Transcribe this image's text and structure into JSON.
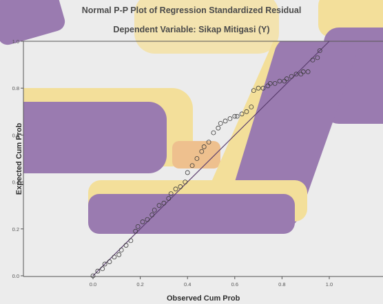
{
  "colors": {
    "background": "#ececec",
    "plot_background": "#dcdcdc",
    "purple_shape": "#9a7bb0",
    "yellow_shape": "#f3df9a",
    "orange_shape": "#eec08e",
    "reference_line": "#5a3d6e",
    "marker": "#3a3a3a"
  },
  "chart_data": {
    "type": "scatter",
    "title": "Normal P-P Plot of Regression Standardized Residual",
    "subtitle": "Dependent Variable: Sikap Mitigasi (Y)",
    "xlabel": "Observed Cum Prob",
    "ylabel": "Expected Cum Prob",
    "xlim": [
      0.0,
      1.0
    ],
    "ylim": [
      0.0,
      1.0
    ],
    "x_ticks": [
      "0.0",
      "0.2",
      "0.4",
      "0.6",
      "0.8",
      "1.0"
    ],
    "y_ticks": [
      "0.0",
      "0.2",
      "0.4",
      "0.6",
      "0.8",
      "1.0"
    ],
    "grid": false,
    "reference_line": {
      "from": [
        0.0,
        0.0
      ],
      "to": [
        1.0,
        1.0
      ]
    },
    "x": [
      0.0,
      0.02,
      0.04,
      0.05,
      0.07,
      0.09,
      0.11,
      0.12,
      0.14,
      0.16,
      0.18,
      0.19,
      0.21,
      0.23,
      0.25,
      0.26,
      0.28,
      0.3,
      0.32,
      0.33,
      0.35,
      0.37,
      0.39,
      0.4,
      0.42,
      0.44,
      0.46,
      0.47,
      0.49,
      0.51,
      0.53,
      0.54,
      0.56,
      0.58,
      0.6,
      0.61,
      0.63,
      0.65,
      0.67,
      0.68,
      0.7,
      0.72,
      0.74,
      0.75,
      0.77,
      0.79,
      0.81,
      0.82,
      0.84,
      0.86,
      0.88,
      0.89,
      0.91,
      0.93,
      0.95,
      0.96
    ],
    "y": [
      0.0,
      0.02,
      0.03,
      0.05,
      0.06,
      0.08,
      0.09,
      0.11,
      0.13,
      0.15,
      0.19,
      0.21,
      0.23,
      0.24,
      0.26,
      0.28,
      0.3,
      0.31,
      0.33,
      0.35,
      0.37,
      0.38,
      0.4,
      0.44,
      0.47,
      0.5,
      0.53,
      0.55,
      0.57,
      0.61,
      0.63,
      0.65,
      0.66,
      0.67,
      0.68,
      0.68,
      0.69,
      0.7,
      0.72,
      0.79,
      0.8,
      0.8,
      0.81,
      0.82,
      0.82,
      0.83,
      0.83,
      0.84,
      0.85,
      0.86,
      0.86,
      0.87,
      0.87,
      0.92,
      0.93,
      0.96
    ]
  }
}
